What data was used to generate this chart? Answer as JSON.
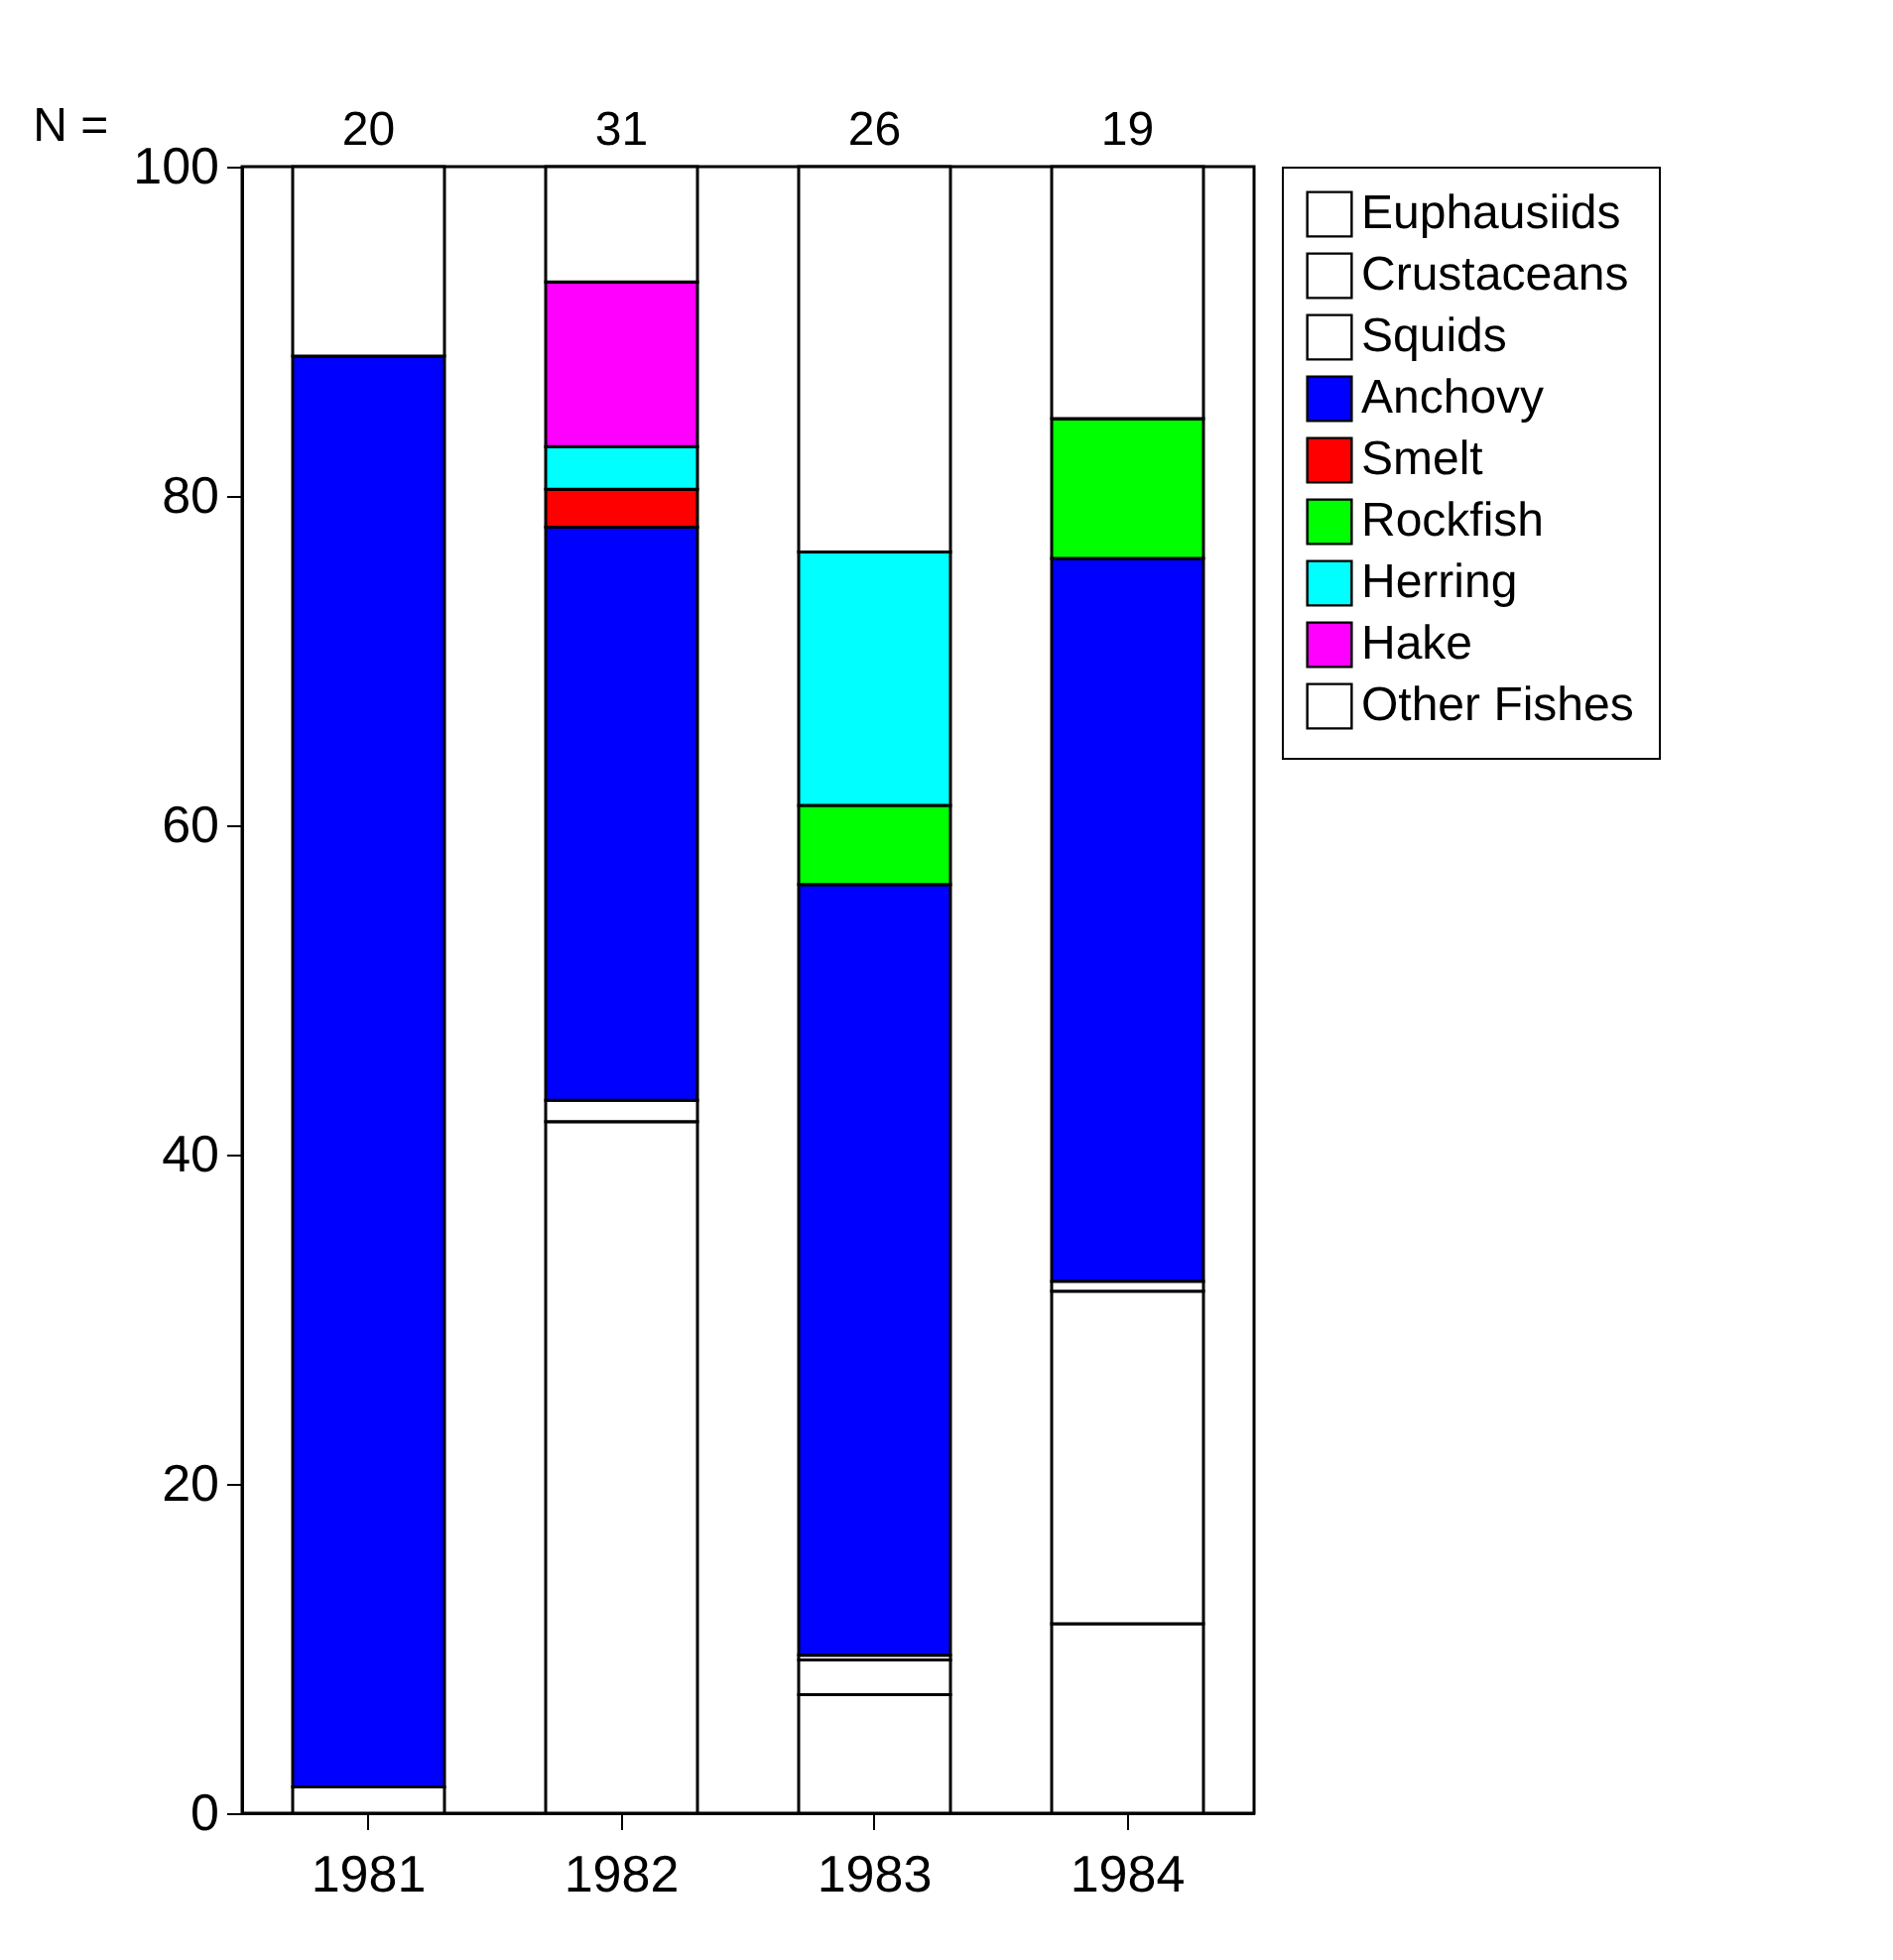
{
  "chart_data": {
    "type": "bar",
    "stacked": true,
    "categories": [
      "1981",
      "1982",
      "1983",
      "1984"
    ],
    "series": [
      {
        "name": "Euphausiids",
        "color": "#ffffff",
        "values": [
          0,
          42,
          7.2,
          11.5
        ]
      },
      {
        "name": "Crustaceans",
        "color": "#ffffff",
        "values": [
          0,
          0,
          2.1,
          20.2
        ]
      },
      {
        "name": "Squids",
        "color": "#ffffff",
        "values": [
          1.6,
          1.3,
          0.3,
          0.6
        ]
      },
      {
        "name": "Anchovy",
        "color": "#0000ff",
        "values": [
          86.9,
          34.8,
          46.8,
          43.9
        ]
      },
      {
        "name": "Smelt",
        "color": "#ff0000",
        "values": [
          0,
          2.3,
          0,
          0
        ]
      },
      {
        "name": "Rockfish",
        "color": "#00ff00",
        "values": [
          0,
          0,
          4.8,
          8.5
        ]
      },
      {
        "name": "Herring",
        "color": "#00ffff",
        "values": [
          0,
          2.6,
          15.4,
          0
        ]
      },
      {
        "name": "Hake",
        "color": "#ff00ff",
        "values": [
          0,
          10,
          0,
          0
        ]
      },
      {
        "name": "Other Fishes",
        "color": "#ffffff",
        "values": [
          11.5,
          7,
          23.4,
          15.3
        ]
      }
    ],
    "ylim": [
      0,
      100
    ],
    "yticks": [
      0,
      20,
      40,
      60,
      80,
      100
    ],
    "grid": false,
    "legend": "right",
    "annotations": [
      "N =",
      {
        "text": "20",
        "x": "1981",
        "y": 100
      },
      {
        "text": "31",
        "x": "1982",
        "y": 100
      },
      {
        "text": "26",
        "x": "1983",
        "y": 100
      },
      {
        "text": "19",
        "x": "1984",
        "y": 100
      }
    ]
  }
}
